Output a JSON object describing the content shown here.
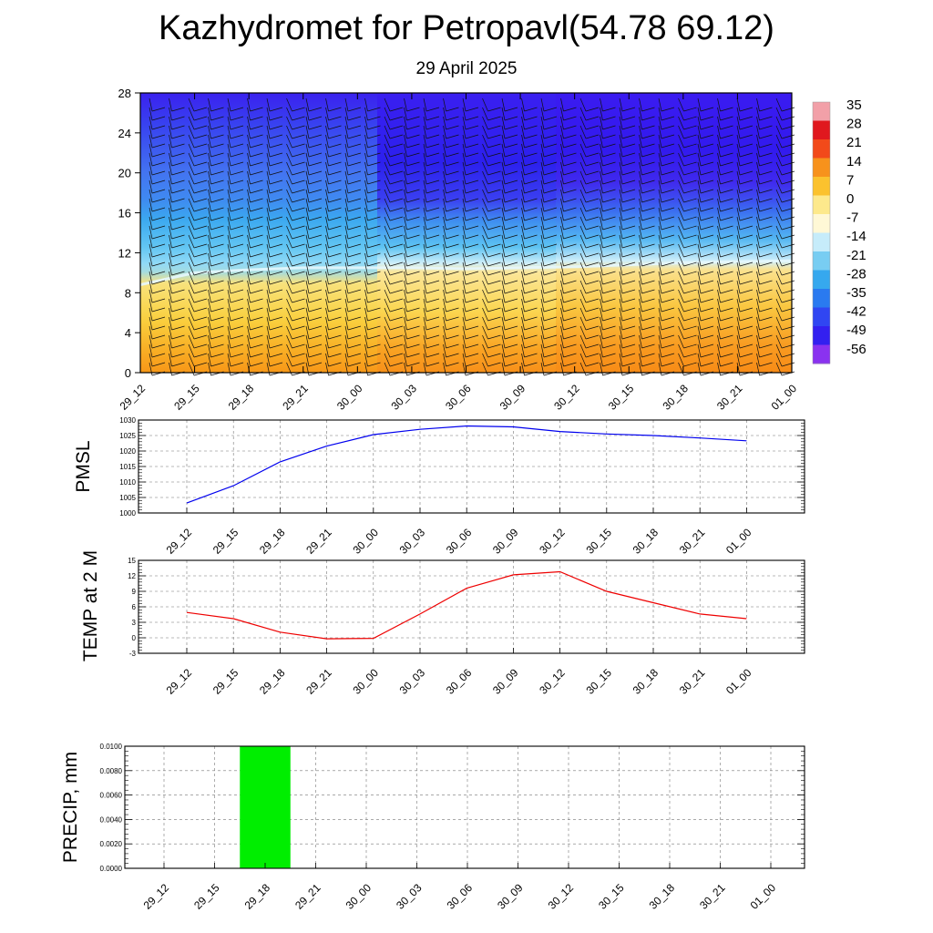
{
  "header": {
    "title": "Kazhydromet for Petropavl(54.78 69.12)",
    "subtitle": "29 April 2025"
  },
  "colors": {
    "pmsl_line": "#0000ee",
    "temp_line": "#ee0000",
    "precip_bar": "#00ee00",
    "cold_top": "#3b10f0",
    "freezing_band": "#cfeefa",
    "warm_bottom": "#f79a18"
  },
  "chart_data": [
    {
      "id": "cross_section",
      "type": "heatmap",
      "x_ticks": [
        "29_12",
        "29_15",
        "29_18",
        "29_21",
        "30_00",
        "30_03",
        "30_06",
        "30_09",
        "30_12",
        "30_15",
        "30_18",
        "30_21",
        "01_00"
      ],
      "y_ticks": [
        0,
        4,
        8,
        12,
        16,
        20,
        24,
        28
      ],
      "ylim": [
        0,
        28
      ],
      "colorbar": {
        "labels": [
          "35",
          "28",
          "21",
          "14",
          "7",
          "0",
          "-7",
          "-14",
          "-21",
          "-28",
          "-35",
          "-42",
          "-49",
          "-56"
        ],
        "colors": [
          "#f2a0a8",
          "#e0181e",
          "#f24a1a",
          "#f7921c",
          "#fbc22e",
          "#fde98c",
          "#fff8d6",
          "#c6ecfa",
          "#78cdf2",
          "#36a8ee",
          "#2a7af0",
          "#3046f2",
          "#3320f0",
          "#8a32f0"
        ]
      },
      "freezing_height_km": [
        8.8,
        10.0,
        10.3,
        10.5,
        10.5,
        10.5,
        10.4,
        10.5,
        10.6,
        10.8,
        11.0,
        11.1,
        11.2
      ],
      "wind_barbs": "present at all levels and times"
    },
    {
      "id": "pmsl",
      "type": "line",
      "ylabel": "PMSL",
      "ylim": [
        1000,
        1030
      ],
      "y_ticks": [
        1000,
        1005,
        1010,
        1015,
        1020,
        1025,
        1030
      ],
      "categories": [
        "29_12",
        "29_15",
        "29_18",
        "29_21",
        "30_00",
        "30_03",
        "30_06",
        "30_09",
        "30_12",
        "30_15",
        "30_18",
        "30_21",
        "01_00"
      ],
      "values": [
        1003.2,
        1008.8,
        1016.5,
        1021.6,
        1025.3,
        1027.0,
        1028.1,
        1027.8,
        1026.3,
        1025.5,
        1025.0,
        1024.2,
        1023.3
      ]
    },
    {
      "id": "temp",
      "type": "line",
      "ylabel": "TEMP at 2 M",
      "ylim": [
        -3,
        15
      ],
      "y_ticks": [
        -3,
        0,
        3,
        6,
        9,
        12,
        15
      ],
      "categories": [
        "29_12",
        "29_15",
        "29_18",
        "29_21",
        "30_00",
        "30_03",
        "30_06",
        "30_09",
        "30_12",
        "30_15",
        "30_18",
        "30_21",
        "01_00"
      ],
      "values": [
        4.9,
        3.7,
        1.1,
        -0.2,
        -0.1,
        4.6,
        9.6,
        12.2,
        12.8,
        9.0,
        6.8,
        4.6,
        3.7
      ]
    },
    {
      "id": "precip",
      "type": "bar",
      "ylabel": "PRECIP, mm",
      "ylim": [
        0,
        0.01
      ],
      "y_ticks": [
        "0.0000",
        "0.0020",
        "0.0040",
        "0.0060",
        "0.0080",
        "0.0100"
      ],
      "categories": [
        "29_12",
        "29_15",
        "29_18",
        "29_21",
        "30_00",
        "30_03",
        "30_06",
        "30_09",
        "30_12",
        "30_15",
        "30_18",
        "30_21",
        "01_00"
      ],
      "values": [
        0,
        0,
        0.01,
        0,
        0,
        0,
        0,
        0,
        0,
        0,
        0,
        0,
        0
      ]
    }
  ]
}
